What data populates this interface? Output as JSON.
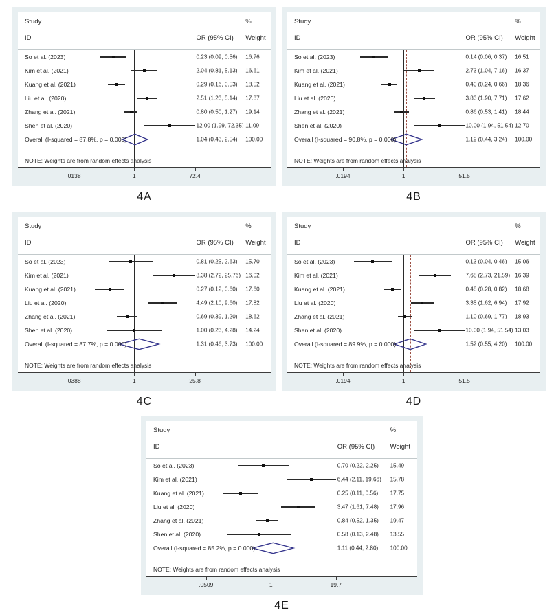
{
  "figure": {
    "note": "NOTE: Weights are from random effects analysis",
    "columns": {
      "study": "Study",
      "id": "ID",
      "percent": "%",
      "or_ci": "OR (95% CI)",
      "weight": "Weight"
    }
  },
  "colors": {
    "panel_bg": "#e8eff1",
    "plot_bg": "#ffffff",
    "axis": "#3c3c3c",
    "ci_line": "#2b2b2b",
    "marker": "#111111",
    "null_line": "#2b2b2b",
    "overall_dashed": "#9c4f43",
    "diamond": "#34348c",
    "divider": "#c2c9cb",
    "text": "#262626"
  },
  "chart_data": [
    {
      "type": "scatter",
      "panel_label": "4A",
      "axis": {
        "min": 0.0138,
        "mid": 1,
        "max": 72.4,
        "min_label": ".0138",
        "mid_label": "1",
        "max_label": "72.4",
        "scale": "log"
      },
      "overall": {
        "label": "Overall  (I-squared = 87.8%, p = 0.000)",
        "or": 1.04,
        "lo": 0.43,
        "hi": 2.54,
        "or_ci": "1.04 (0.43, 2.54)",
        "weight": "100.00"
      },
      "studies": [
        {
          "label": "So et al. (2023)",
          "or": 0.23,
          "lo": 0.09,
          "hi": 0.56,
          "or_ci": "0.23 (0.09, 0.56)",
          "weight": "16.76"
        },
        {
          "label": "Kim et al. (2021)",
          "or": 2.04,
          "lo": 0.81,
          "hi": 5.13,
          "or_ci": "2.04 (0.81, 5.13)",
          "weight": "16.61"
        },
        {
          "label": "Kuang et al. (2021)",
          "or": 0.29,
          "lo": 0.16,
          "hi": 0.53,
          "or_ci": "0.29 (0.16, 0.53)",
          "weight": "18.52"
        },
        {
          "label": "Liu et al. (2020)",
          "or": 2.51,
          "lo": 1.23,
          "hi": 5.14,
          "or_ci": "2.51 (1.23, 5.14)",
          "weight": "17.87"
        },
        {
          "label": "Zhang et al. (2021)",
          "or": 0.8,
          "lo": 0.5,
          "hi": 1.27,
          "or_ci": "0.80 (0.50, 1.27)",
          "weight": "19.14"
        },
        {
          "label": "Shen et al. (2020)",
          "or": 12.0,
          "lo": 1.99,
          "hi": 72.35,
          "or_ci": "12.00 (1.99, 72.35)",
          "weight": "11.09"
        }
      ]
    },
    {
      "type": "scatter",
      "panel_label": "4B",
      "axis": {
        "min": 0.0194,
        "mid": 1,
        "max": 51.5,
        "min_label": ".0194",
        "mid_label": "1",
        "max_label": "51.5",
        "scale": "log"
      },
      "overall": {
        "label": "Overall  (I-squared = 90.8%, p = 0.000)",
        "or": 1.19,
        "lo": 0.44,
        "hi": 3.24,
        "or_ci": "1.19 (0.44, 3.24)",
        "weight": "100.00"
      },
      "studies": [
        {
          "label": "So et al. (2023)",
          "or": 0.14,
          "lo": 0.06,
          "hi": 0.37,
          "or_ci": "0.14 (0.06, 0.37)",
          "weight": "16.51"
        },
        {
          "label": "Kim et al. (2021)",
          "or": 2.73,
          "lo": 1.04,
          "hi": 7.16,
          "or_ci": "2.73 (1.04, 7.16)",
          "weight": "16.37"
        },
        {
          "label": "Kuang et al. (2021)",
          "or": 0.4,
          "lo": 0.24,
          "hi": 0.66,
          "or_ci": "0.40 (0.24, 0.66)",
          "weight": "18.36"
        },
        {
          "label": "Liu et al. (2020)",
          "or": 3.83,
          "lo": 1.9,
          "hi": 7.71,
          "or_ci": "3.83 (1.90, 7.71)",
          "weight": "17.62"
        },
        {
          "label": "Zhang et al. (2021)",
          "or": 0.86,
          "lo": 0.53,
          "hi": 1.41,
          "or_ci": "0.86 (0.53, 1.41)",
          "weight": "18.44"
        },
        {
          "label": "Shen et al. (2020)",
          "or": 10.0,
          "lo": 1.94,
          "hi": 51.54,
          "or_ci": "10.00 (1.94, 51.54)",
          "weight": "12.70"
        }
      ]
    },
    {
      "type": "scatter",
      "panel_label": "4C",
      "axis": {
        "min": 0.0388,
        "mid": 1,
        "max": 25.8,
        "min_label": ".0388",
        "mid_label": "1",
        "max_label": "25.8",
        "scale": "log"
      },
      "overall": {
        "label": "Overall  (I-squared = 87.7%, p = 0.000)",
        "or": 1.31,
        "lo": 0.46,
        "hi": 3.73,
        "or_ci": "1.31 (0.46, 3.73)",
        "weight": "100.00"
      },
      "studies": [
        {
          "label": "So et al. (2023)",
          "or": 0.81,
          "lo": 0.25,
          "hi": 2.63,
          "or_ci": "0.81 (0.25, 2.63)",
          "weight": "15.70"
        },
        {
          "label": "Kim et al. (2021)",
          "or": 8.38,
          "lo": 2.72,
          "hi": 25.76,
          "or_ci": "8.38 (2.72, 25.76)",
          "weight": "16.02"
        },
        {
          "label": "Kuang et al. (2021)",
          "or": 0.27,
          "lo": 0.12,
          "hi": 0.6,
          "or_ci": "0.27 (0.12, 0.60)",
          "weight": "17.60"
        },
        {
          "label": "Liu et al. (2020)",
          "or": 4.49,
          "lo": 2.1,
          "hi": 9.6,
          "or_ci": "4.49 (2.10, 9.60)",
          "weight": "17.82"
        },
        {
          "label": "Zhang et al. (2021)",
          "or": 0.69,
          "lo": 0.39,
          "hi": 1.2,
          "or_ci": "0.69 (0.39, 1.20)",
          "weight": "18.62"
        },
        {
          "label": "Shen et al. (2020)",
          "or": 1.0,
          "lo": 0.23,
          "hi": 4.28,
          "or_ci": "1.00 (0.23, 4.28)",
          "weight": "14.24"
        }
      ]
    },
    {
      "type": "scatter",
      "panel_label": "4D",
      "axis": {
        "min": 0.0194,
        "mid": 1,
        "max": 51.5,
        "min_label": ".0194",
        "mid_label": "1",
        "max_label": "51.5",
        "scale": "log"
      },
      "overall": {
        "label": "Overall  (I-squared = 89.9%, p = 0.000)",
        "or": 1.52,
        "lo": 0.55,
        "hi": 4.2,
        "or_ci": "1.52 (0.55, 4.20)",
        "weight": "100.00"
      },
      "studies": [
        {
          "label": "So et al. (2023)",
          "or": 0.13,
          "lo": 0.04,
          "hi": 0.46,
          "or_ci": "0.13 (0.04, 0.46)",
          "weight": "15.06"
        },
        {
          "label": "Kim et al. (2021)",
          "or": 7.68,
          "lo": 2.73,
          "hi": 21.59,
          "or_ci": "7.68 (2.73, 21.59)",
          "weight": "16.39"
        },
        {
          "label": "Kuang et al. (2021)",
          "or": 0.48,
          "lo": 0.28,
          "hi": 0.82,
          "or_ci": "0.48 (0.28, 0.82)",
          "weight": "18.68"
        },
        {
          "label": "Liu et al. (2020)",
          "or": 3.35,
          "lo": 1.62,
          "hi": 6.94,
          "or_ci": "3.35 (1.62, 6.94)",
          "weight": "17.92"
        },
        {
          "label": "Zhang et al. (2021)",
          "or": 1.1,
          "lo": 0.69,
          "hi": 1.77,
          "or_ci": "1.10 (0.69, 1.77)",
          "weight": "18.93"
        },
        {
          "label": "Shen et al. (2020)",
          "or": 10.0,
          "lo": 1.94,
          "hi": 51.54,
          "or_ci": "10.00 (1.94, 51.54)",
          "weight": "13.03"
        }
      ]
    },
    {
      "type": "scatter",
      "panel_label": "4E",
      "axis": {
        "min": 0.0509,
        "mid": 1,
        "max": 19.7,
        "min_label": ".0509",
        "mid_label": "1",
        "max_label": "19.7",
        "scale": "log"
      },
      "overall": {
        "label": "Overall  (I-squared = 85.2%, p = 0.000)",
        "or": 1.11,
        "lo": 0.44,
        "hi": 2.8,
        "or_ci": "1.11 (0.44, 2.80)",
        "weight": "100.00"
      },
      "studies": [
        {
          "label": "So et al. (2023)",
          "or": 0.7,
          "lo": 0.22,
          "hi": 2.25,
          "or_ci": "0.70 (0.22, 2.25)",
          "weight": "15.49"
        },
        {
          "label": "Kim et al. (2021)",
          "or": 6.44,
          "lo": 2.11,
          "hi": 19.66,
          "or_ci": "6.44 (2.11, 19.66)",
          "weight": "15.78"
        },
        {
          "label": "Kuang et al. (2021)",
          "or": 0.25,
          "lo": 0.11,
          "hi": 0.56,
          "or_ci": "0.25 (0.11, 0.56)",
          "weight": "17.75"
        },
        {
          "label": "Liu et al. (2020)",
          "or": 3.47,
          "lo": 1.61,
          "hi": 7.48,
          "or_ci": "3.47 (1.61, 7.48)",
          "weight": "17.96"
        },
        {
          "label": "Zhang et al. (2021)",
          "or": 0.84,
          "lo": 0.52,
          "hi": 1.35,
          "or_ci": "0.84 (0.52, 1.35)",
          "weight": "19.47"
        },
        {
          "label": "Shen et al. (2020)",
          "or": 0.58,
          "lo": 0.13,
          "hi": 2.48,
          "or_ci": "0.58 (0.13, 2.48)",
          "weight": "13.55"
        }
      ]
    }
  ]
}
